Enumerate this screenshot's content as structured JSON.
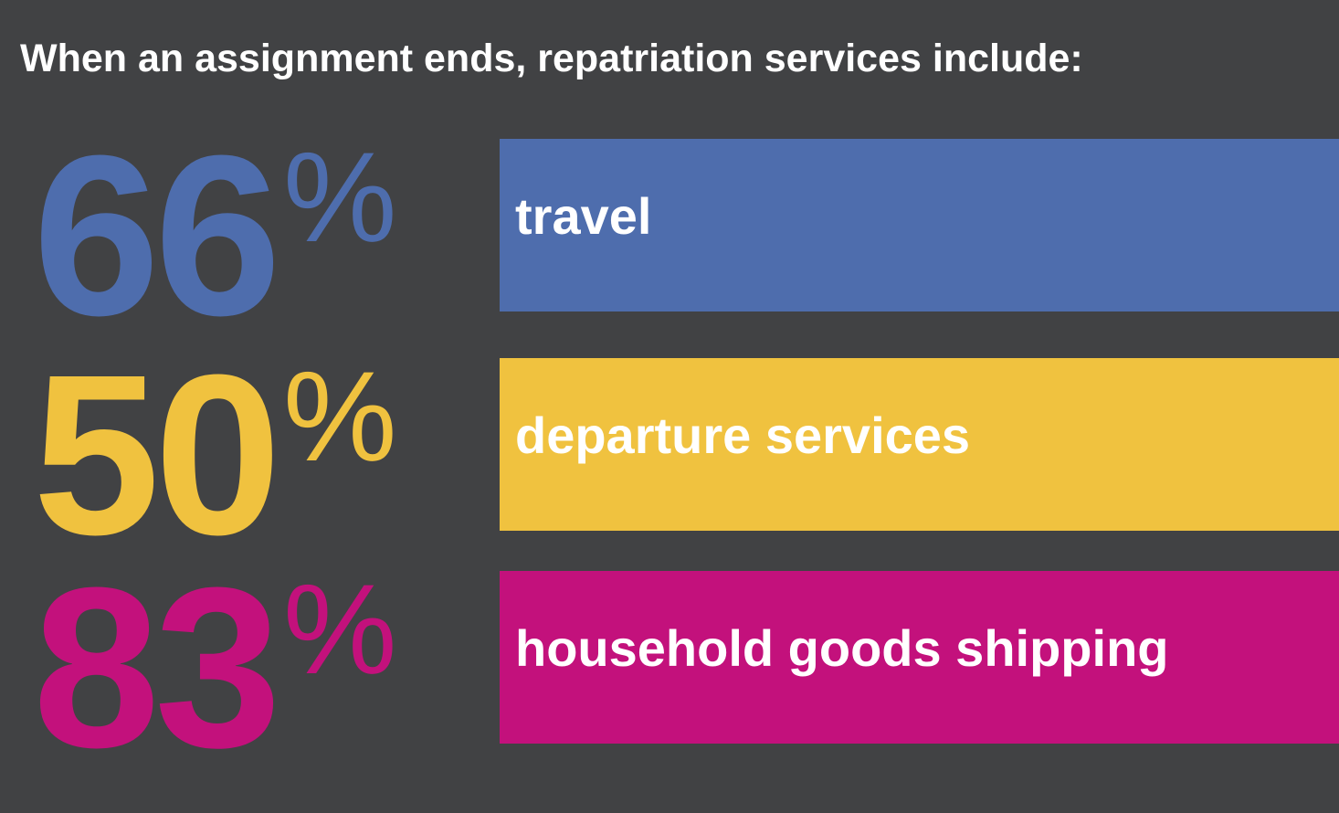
{
  "title": "When an assignment ends, repatriation services include:",
  "items": [
    {
      "number": 66,
      "unit": "%",
      "label": "travel",
      "color": "#4e6dad"
    },
    {
      "number": 50,
      "unit": "%",
      "label": "departure services",
      "color": "#f0c23f"
    },
    {
      "number": 83,
      "unit": "%",
      "label": "household goods shipping",
      "color": "#c3117c"
    }
  ]
}
